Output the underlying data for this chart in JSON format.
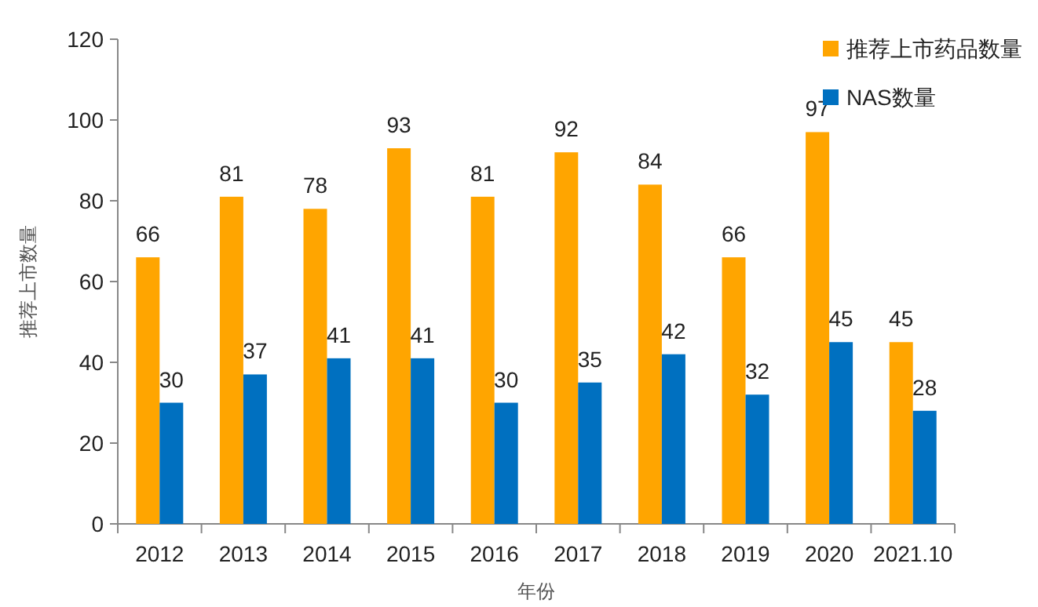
{
  "chart_data": {
    "type": "bar",
    "xlabel": "年份",
    "ylabel": "推荐上市数量",
    "categories": [
      "2012",
      "2013",
      "2014",
      "2015",
      "2016",
      "2017",
      "2018",
      "2019",
      "2020",
      "2021.10"
    ],
    "series": [
      {
        "name": "推荐上市药品数量",
        "color": "#ffa500",
        "values": [
          66,
          81,
          78,
          93,
          81,
          92,
          84,
          66,
          97,
          45
        ]
      },
      {
        "name": "NAS数量",
        "color": "#0070c0",
        "values": [
          30,
          37,
          41,
          41,
          30,
          35,
          42,
          32,
          45,
          28
        ]
      }
    ],
    "ylim": [
      0,
      120
    ],
    "yticks": [
      0,
      20,
      40,
      60,
      80,
      100,
      120
    ],
    "data_labels": true,
    "legend": "top right",
    "grid": false
  }
}
